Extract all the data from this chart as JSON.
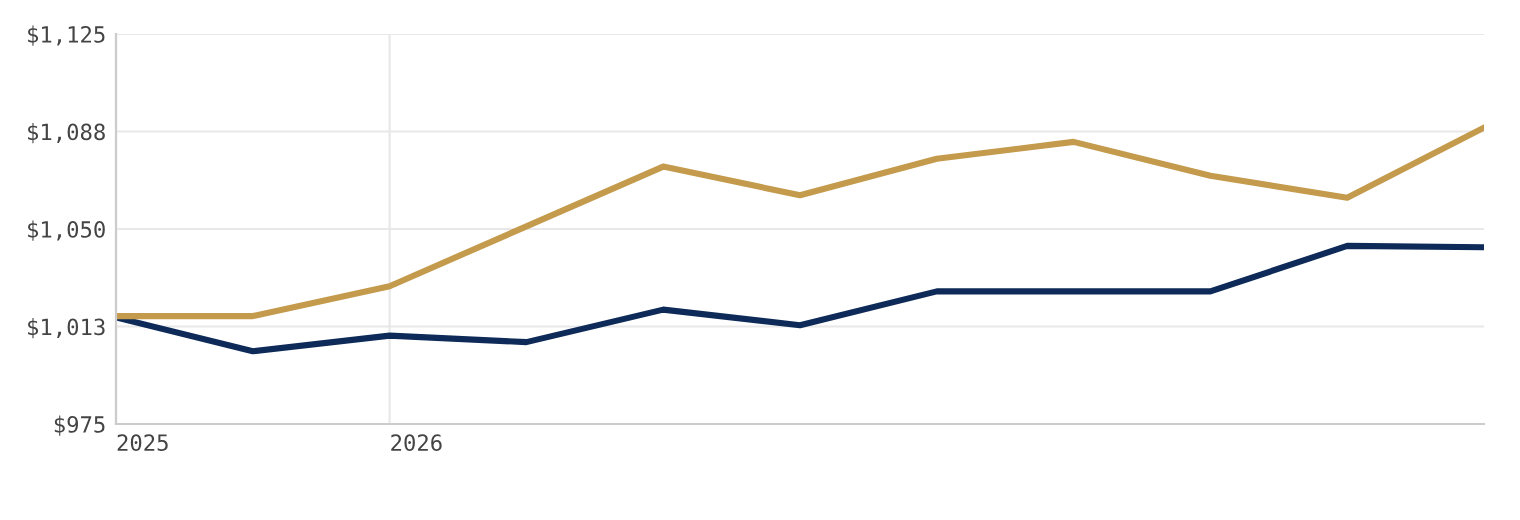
{
  "chart_data": {
    "type": "line",
    "categories": [
      "2025",
      null,
      "2026",
      null,
      null,
      null,
      null,
      null,
      null,
      null,
      null
    ],
    "series": [
      {
        "color": "#0e2a58",
        "values": [
          1016,
          1003,
          1009,
          1006.5,
          1019,
          1013,
          1026,
          1026,
          1026,
          1043.5,
          1043
        ]
      },
      {
        "color": "#c49a4c",
        "values": [
          1016.5,
          1016.5,
          1028,
          1051,
          1074,
          1063,
          1077,
          1083.5,
          1070.5,
          1062,
          1089
        ]
      }
    ],
    "ylim": [
      975,
      1125
    ],
    "yticks": [
      {
        "value": 975,
        "label": "$975"
      },
      {
        "value": 1012.5,
        "label": "$1,013"
      },
      {
        "value": 1050,
        "label": "$1,050"
      },
      {
        "value": 1087.5,
        "label": "$1,088"
      },
      {
        "value": 1125,
        "label": "$1,125"
      }
    ],
    "grid": true,
    "marker": "none",
    "line_style": "solid"
  }
}
